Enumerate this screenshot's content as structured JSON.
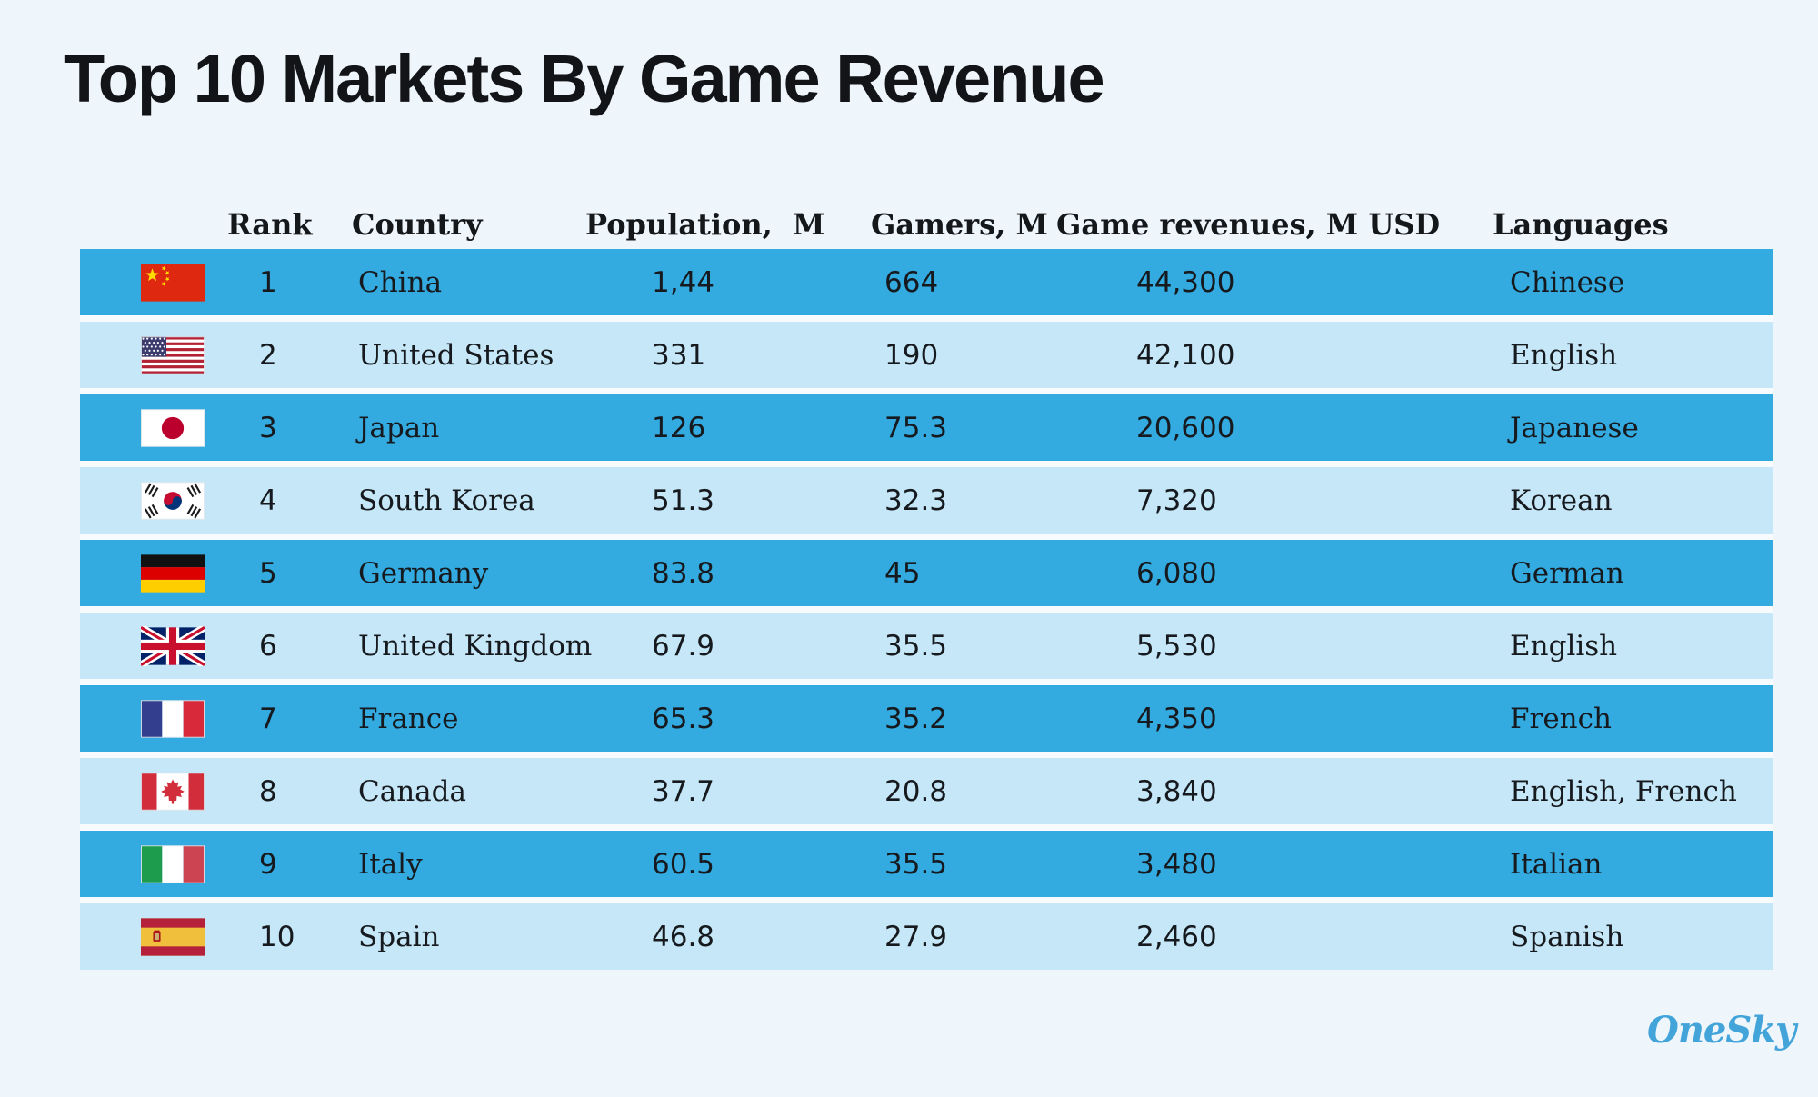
{
  "title": "Top 10 Markets By Game Revenue",
  "logo": "OneSky",
  "colors": {
    "background": "#EEF5FB",
    "row_dark": "#33ABE1",
    "row_light": "#C5E7F7",
    "row_gap": "#F7FBFE",
    "text": "#161A1E",
    "logo_blue": "#42A4D9"
  },
  "chart_data": {
    "type": "table",
    "title": "Top 10 Markets By Game Revenue",
    "columns": [
      "Rank",
      "Country",
      "Population,  M",
      "Gamers, M",
      "Game revenues, M USD",
      "Languages"
    ],
    "rows": [
      {
        "rank": "1",
        "flag": "china",
        "country": "China",
        "population": "1,44",
        "gamers": "664",
        "revenue": "44,300",
        "languages": "Chinese"
      },
      {
        "rank": "2",
        "flag": "united-states",
        "country": "United States",
        "population": "331",
        "gamers": "190",
        "revenue": "42,100",
        "languages": "English"
      },
      {
        "rank": "3",
        "flag": "japan",
        "country": "Japan",
        "population": "126",
        "gamers": "75.3",
        "revenue": "20,600",
        "languages": "Japanese"
      },
      {
        "rank": "4",
        "flag": "south-korea",
        "country": "South Korea",
        "population": "51.3",
        "gamers": "32.3",
        "revenue": "7,320",
        "languages": "Korean"
      },
      {
        "rank": "5",
        "flag": "germany",
        "country": "Germany",
        "population": "83.8",
        "gamers": "45",
        "revenue": "6,080",
        "languages": "German"
      },
      {
        "rank": "6",
        "flag": "united-kingdom",
        "country": "United Kingdom",
        "population": "67.9",
        "gamers": "35.5",
        "revenue": "5,530",
        "languages": "English"
      },
      {
        "rank": "7",
        "flag": "france",
        "country": "France",
        "population": "65.3",
        "gamers": "35.2",
        "revenue": "4,350",
        "languages": "French"
      },
      {
        "rank": "8",
        "flag": "canada",
        "country": "Canada",
        "population": "37.7",
        "gamers": "20.8",
        "revenue": "3,840",
        "languages": "English, French"
      },
      {
        "rank": "9",
        "flag": "italy",
        "country": "Italy",
        "population": "60.5",
        "gamers": "35.5",
        "revenue": "3,480",
        "languages": "Italian"
      },
      {
        "rank": "10",
        "flag": "spain",
        "country": "Spain",
        "population": "46.8",
        "gamers": "27.9",
        "revenue": "2,460",
        "languages": "Spanish"
      }
    ]
  }
}
